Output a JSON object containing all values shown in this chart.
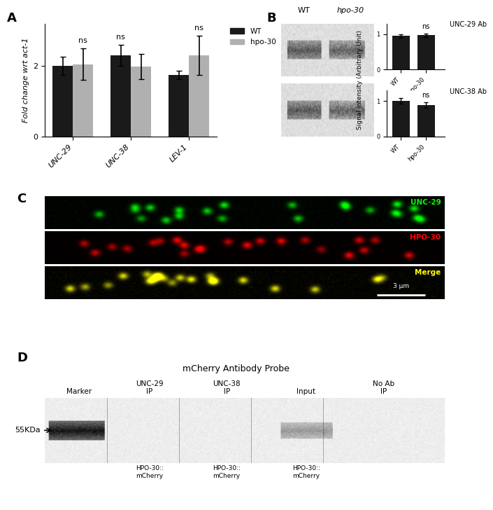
{
  "panel_A": {
    "label": "A",
    "categories": [
      "UNC-29",
      "UNC-38",
      "LEV-1"
    ],
    "wt_values": [
      2.0,
      2.3,
      1.75
    ],
    "hpo_values": [
      2.05,
      1.98,
      2.3
    ],
    "wt_errors": [
      0.25,
      0.3,
      0.12
    ],
    "hpo_errors": [
      0.45,
      0.35,
      0.55
    ],
    "ylabel": "Fold change wrt act-1",
    "ylim": [
      0,
      3.2
    ],
    "yticks": [
      0,
      2
    ],
    "legend_wt": "WT",
    "legend_hpo": "hpo-30",
    "bar_width": 0.35,
    "wt_color": "#1a1a1a",
    "hpo_color": "#b0b0b0"
  },
  "panel_B": {
    "label": "B",
    "wt_label": "WT",
    "hpo_label": "hpo-30",
    "ab1_label": "UNC-29 Ab",
    "ab2_label": "UNC-38 Ab",
    "ylabel": "Signal intensity (Arbitrary Unit)",
    "ylim": [
      0,
      1.3
    ],
    "yticks": [
      0,
      1
    ],
    "bar1_wt": 0.95,
    "bar1_hpo": 0.97,
    "bar1_wt_err": 0.05,
    "bar1_hpo_err": 0.05,
    "bar2_wt": 1.0,
    "bar2_hpo": 0.88,
    "bar2_wt_err": 0.08,
    "bar2_hpo_err": 0.08,
    "bar_color": "#1a1a1a"
  },
  "panel_C": {
    "label": "C",
    "channel1_label": "UNC-29",
    "channel1_color": "#00ff00",
    "channel2_label": "HPO-30",
    "channel2_color": "#ff0000",
    "channel3_label": "Merge",
    "channel3_color": "#ffff00",
    "scale_bar": "3 μm"
  },
  "panel_D": {
    "label": "D",
    "title": "mCherry Antibody Probe",
    "marker_label": "Marker",
    "marker_size": "55KDa",
    "columns": [
      "UNC-29\nIP",
      "UNC-38\nIP",
      "Input",
      "No Ab\nIP"
    ],
    "row_labels": [
      "HPO-30::\nmCherry",
      "HPO-30::\nmCherry",
      "HPO-30::\nmCherry"
    ],
    "band_present": [
      true,
      false,
      true,
      false
    ]
  },
  "figure_bg": "#ffffff"
}
